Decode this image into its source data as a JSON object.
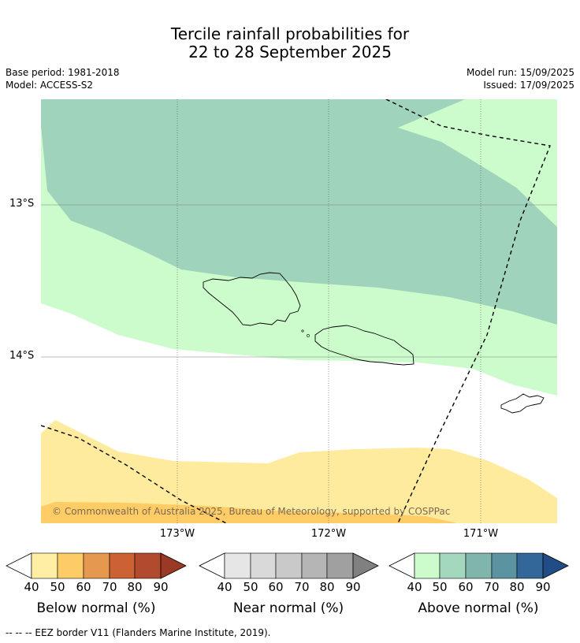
{
  "title": {
    "line1": "Tercile rainfall probabilities for",
    "line2": "22 to 28 September 2025"
  },
  "meta": {
    "base_period": "Base period: 1981-2018",
    "model": "Model: ACCESS-S2",
    "model_run": "Model run: 15/09/2025",
    "issued": "Issued: 17/09/2025"
  },
  "map": {
    "lat_labels": [
      "13°S",
      "14°S"
    ],
    "lon_labels": [
      "173°W",
      "172°W",
      "171°W"
    ],
    "copyright": "© Commonwealth of Australia 2025, Bureau of Meteorology, supported by COSPPac",
    "colors": {
      "above_50": "#9fd3bb",
      "above_40": "#ccfccc",
      "below_40": "#ffeb9d",
      "below_50": "#ffcc66"
    }
  },
  "colorbars": [
    {
      "label": "Below normal (%)",
      "ticks": [
        "40",
        "50",
        "60",
        "70",
        "80",
        "90"
      ],
      "colors": [
        "#ffeea3",
        "#fdcc66",
        "#e4994e",
        "#cc6133",
        "#b24a2d",
        "#9b3a24"
      ]
    },
    {
      "label": "Near normal (%)",
      "ticks": [
        "40",
        "50",
        "60",
        "70",
        "80",
        "90"
      ],
      "colors": [
        "#e6e6e6",
        "#d9d9d9",
        "#c9c9c9",
        "#b5b5b5",
        "#a0a0a0",
        "#808080"
      ]
    },
    {
      "label": "Above normal (%)",
      "ticks": [
        "40",
        "50",
        "60",
        "70",
        "80",
        "90"
      ],
      "colors": [
        "#ccfccc",
        "#a3d8bf",
        "#80b5ab",
        "#5b94a0",
        "#336699",
        "#204d85"
      ]
    }
  ],
  "footnote": "--  --  -- EEZ border V11 (Flanders Marine Institute, 2019)."
}
